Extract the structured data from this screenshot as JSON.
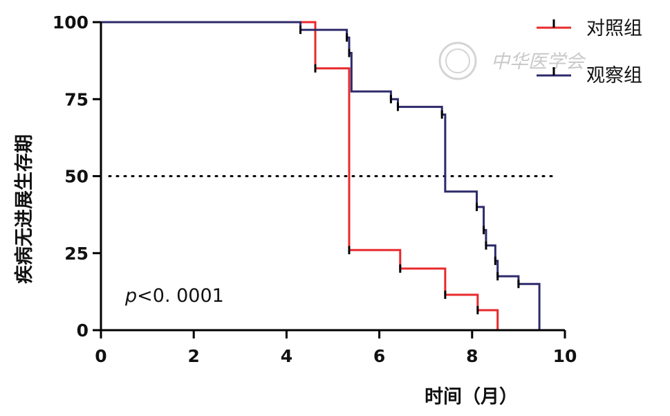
{
  "chart_data": {
    "type": "line",
    "title": "",
    "xlabel": "时间（月）",
    "ylabel": "疾病无进展生存期",
    "xlim": [
      0,
      10
    ],
    "ylim": [
      0,
      100
    ],
    "x_ticks": [
      "0",
      "2",
      "4",
      "6",
      "8",
      "10"
    ],
    "y_ticks": [
      "0",
      "25",
      "50",
      "75",
      "100"
    ],
    "grid": false,
    "legend_position": "top-right",
    "annotation": {
      "prefix": "p",
      "text": "<0. 0001"
    },
    "watermark": "中华医学会",
    "reference_line": {
      "y": 50,
      "style": "dotted"
    },
    "series": [
      {
        "name": "对照组",
        "color": "#e8292b",
        "steps": [
          {
            "x": 0,
            "y": 100
          },
          {
            "x": 4.62,
            "y": 85
          },
          {
            "x": 5.35,
            "y": 26
          },
          {
            "x": 6.45,
            "y": 20
          },
          {
            "x": 7.42,
            "y": 11.5
          },
          {
            "x": 8.12,
            "y": 6.5
          },
          {
            "x": 8.55,
            "y": 0
          }
        ],
        "censored": [
          {
            "x": 4.62,
            "y": 85
          },
          {
            "x": 5.35,
            "y": 26
          },
          {
            "x": 6.45,
            "y": 20
          },
          {
            "x": 7.42,
            "y": 11.5
          },
          {
            "x": 8.12,
            "y": 6.5
          }
        ]
      },
      {
        "name": "观察组",
        "color": "#2d2a6b",
        "steps": [
          {
            "x": 0,
            "y": 100
          },
          {
            "x": 4.3,
            "y": 97.5
          },
          {
            "x": 5.3,
            "y": 95
          },
          {
            "x": 5.35,
            "y": 90
          },
          {
            "x": 5.4,
            "y": 77.5
          },
          {
            "x": 6.25,
            "y": 75
          },
          {
            "x": 6.4,
            "y": 72.5
          },
          {
            "x": 7.35,
            "y": 70
          },
          {
            "x": 7.42,
            "y": 45
          },
          {
            "x": 8.1,
            "y": 40
          },
          {
            "x": 8.25,
            "y": 32.5
          },
          {
            "x": 8.3,
            "y": 27.5
          },
          {
            "x": 8.5,
            "y": 22.5
          },
          {
            "x": 8.55,
            "y": 17.5
          },
          {
            "x": 9.0,
            "y": 15
          },
          {
            "x": 9.45,
            "y": 0
          }
        ],
        "censored": [
          {
            "x": 4.3,
            "y": 97.5
          },
          {
            "x": 5.3,
            "y": 95
          },
          {
            "x": 5.35,
            "y": 90
          },
          {
            "x": 6.25,
            "y": 75
          },
          {
            "x": 6.4,
            "y": 72.5
          },
          {
            "x": 7.35,
            "y": 70
          },
          {
            "x": 8.1,
            "y": 40
          },
          {
            "x": 8.25,
            "y": 32.5
          },
          {
            "x": 8.3,
            "y": 27.5
          },
          {
            "x": 8.5,
            "y": 22.5
          },
          {
            "x": 8.55,
            "y": 17.5
          },
          {
            "x": 9.0,
            "y": 15
          }
        ]
      }
    ]
  }
}
